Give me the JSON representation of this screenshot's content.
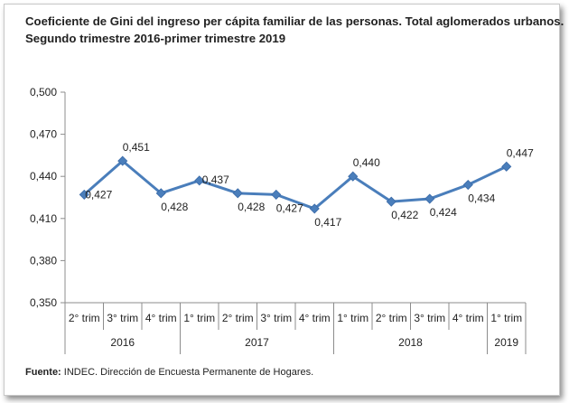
{
  "chart_data": {
    "type": "line",
    "title": "Coeficiente de Gini del ingreso per cápita familiar de las personas. Total aglomerados urbanos.",
    "subtitle": "Segundo trimestre 2016-primer trimestre 2019",
    "xlabel": "",
    "ylabel": "",
    "ylim": [
      0.35,
      0.5
    ],
    "yticks": [
      "0,350",
      "0,380",
      "0,410",
      "0,440",
      "0,470",
      "0,500"
    ],
    "ytick_values": [
      0.35,
      0.38,
      0.41,
      0.44,
      0.47,
      0.5
    ],
    "grid": false,
    "legend": "none",
    "categories": [
      "2° trim",
      "3° trim",
      "4° trim",
      "1° trim",
      "2° trim",
      "3° trim",
      "4° trim",
      "1° trim",
      "2° trim",
      "3° trim",
      "4° trim",
      "1° trim"
    ],
    "years": [
      {
        "label": "2016",
        "count": 3
      },
      {
        "label": "2017",
        "count": 4
      },
      {
        "label": "2018",
        "count": 4
      },
      {
        "label": "2019",
        "count": 1
      }
    ],
    "series": [
      {
        "values": [
          0.427,
          0.451,
          0.428,
          0.437,
          0.428,
          0.427,
          0.417,
          0.44,
          0.422,
          0.424,
          0.434,
          0.447
        ],
        "labels": [
          "0,427",
          "0,451",
          "0,428",
          "0,437",
          "0,428",
          "0,427",
          "0,417",
          "0,440",
          "0,422",
          "0,424",
          "0,434",
          "0,447"
        ],
        "color": "#4a7ebb"
      }
    ]
  },
  "source": {
    "prefix": "Fuente:",
    "text": " INDEC. Dirección de Encuesta Permanente de Hogares."
  }
}
